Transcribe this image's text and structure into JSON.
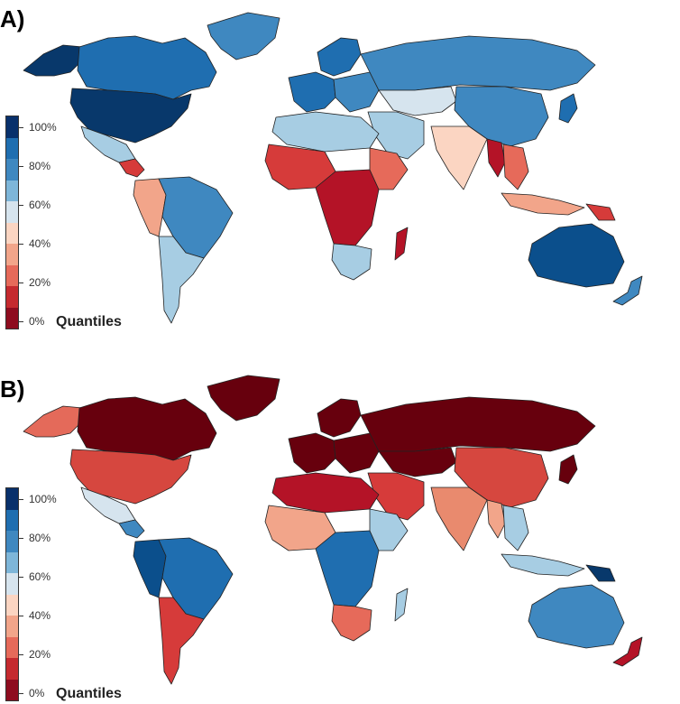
{
  "panels": [
    {
      "label": "A)",
      "legend": {
        "title": "Quantiles",
        "ticks": [
          "100%",
          "80%",
          "60%",
          "40%",
          "20%",
          "0%"
        ]
      },
      "regions": {
        "canada": "#1f6eb0",
        "usa": "#08386b",
        "greenland": "#3f88c0",
        "alaska": "#08386b",
        "mexico": "#a7cde3",
        "central_america": "#d63b3a",
        "brazil": "#3f88c0",
        "andes": "#f2a58a",
        "southern_cone": "#a7cde3",
        "north_africa": "#a7cde3",
        "west_africa": "#d63b3a",
        "central_africa": "#b41327",
        "east_africa": "#e66a5a",
        "south_africa": "#a7cde3",
        "madagascar": "#b41327",
        "western_europe": "#1f6eb0",
        "scandinavia": "#1f6eb0",
        "eastern_europe": "#3f88c0",
        "russia": "#3f88c0",
        "middle_east": "#a7cde3",
        "central_asia": "#d6e4ee",
        "india": "#fbd5c2",
        "china": "#3f88c0",
        "southeast_asia": "#e66a5a",
        "myanmar": "#b41327",
        "japan": "#1f6eb0",
        "indonesia": "#f2a58a",
        "png": "#d63b3a",
        "australia": "#0b4f8c",
        "new_zealand": "#3f88c0"
      }
    },
    {
      "label": "B)",
      "legend": {
        "title": "Quantiles",
        "ticks": [
          "100%",
          "80%",
          "60%",
          "40%",
          "20%",
          "0%"
        ]
      },
      "regions": {
        "canada": "#67000d",
        "usa": "#d6473f",
        "greenland": "#67000d",
        "alaska": "#e46a5a",
        "mexico": "#d6e4ee",
        "central_america": "#3f88c0",
        "brazil": "#1f6eb0",
        "andes": "#0b4f8c",
        "southern_cone": "#d63b3a",
        "north_africa": "#b41327",
        "west_africa": "#f2a58a",
        "central_africa": "#1f6eb0",
        "east_africa": "#a7cde3",
        "south_africa": "#e66a5a",
        "madagascar": "#a7cde3",
        "western_europe": "#67000d",
        "scandinavia": "#67000d",
        "eastern_europe": "#67000d",
        "russia": "#67000d",
        "middle_east": "#d63b3a",
        "central_asia": "#67000d",
        "india": "#e98a6e",
        "china": "#d6473f",
        "southeast_asia": "#a7cde3",
        "myanmar": "#f2a58a",
        "japan": "#67000d",
        "indonesia": "#a7cde3",
        "png": "#08386b",
        "australia": "#3f88c0",
        "new_zealand": "#b41327"
      }
    }
  ],
  "legend_colors": [
    "#08306b",
    "#1f6eb0",
    "#3f88c0",
    "#7eb6d9",
    "#d6e4ee",
    "#fbd5c2",
    "#f2a58a",
    "#e66a5a",
    "#c52a2f",
    "#8e0c1f"
  ]
}
